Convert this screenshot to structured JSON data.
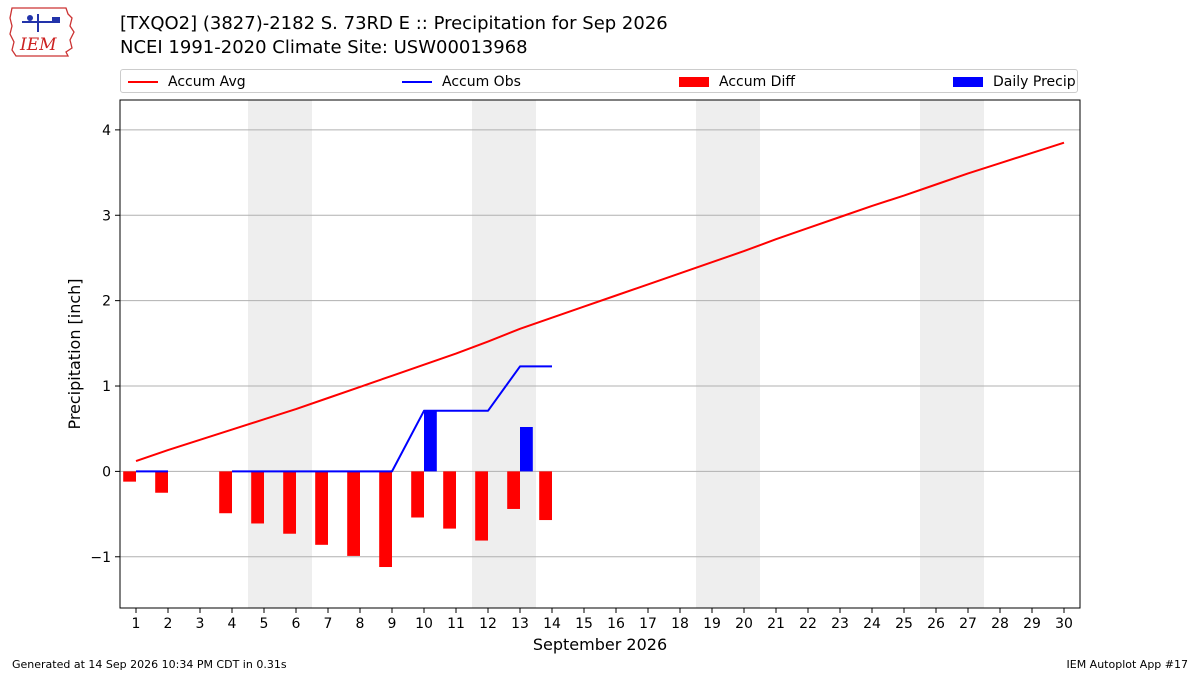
{
  "header": {
    "title": "[TXQO2] (3827)-2182 S. 73RD E :: Precipitation for Sep 2026",
    "subtitle": "NCEI 1991-2020 Climate Site: USW00013968",
    "logo_text": "IEM"
  },
  "legend": {
    "items": [
      {
        "label": "Accum Avg",
        "kind": "line",
        "color": "#ff0000"
      },
      {
        "label": "Accum Obs",
        "kind": "line",
        "color": "#0000ff"
      },
      {
        "label": "Accum Diff",
        "kind": "patch",
        "color": "#ff0000"
      },
      {
        "label": "Daily Precip",
        "kind": "patch",
        "color": "#0000ff"
      }
    ]
  },
  "chart_data": {
    "type": "bar",
    "xlabel": "September 2026",
    "ylabel": "Precipitation [inch]",
    "xlim": [
      0.5,
      30.5
    ],
    "ylim": [
      -1.6,
      4.35
    ],
    "yticks": [
      -1,
      0,
      1,
      2,
      3,
      4
    ],
    "ytick_labels": [
      "−1",
      "0",
      "1",
      "2",
      "3",
      "4"
    ],
    "xticks": [
      1,
      2,
      3,
      4,
      5,
      6,
      7,
      8,
      9,
      10,
      11,
      12,
      13,
      14,
      15,
      16,
      17,
      18,
      19,
      20,
      21,
      22,
      23,
      24,
      25,
      26,
      27,
      28,
      29,
      30
    ],
    "xtick_labels": [
      "1",
      "2",
      "3",
      "4",
      "5",
      "6",
      "7",
      "8",
      "9",
      "10",
      "11",
      "12",
      "13",
      "14",
      "15",
      "16",
      "17",
      "18",
      "19",
      "20",
      "21",
      "22",
      "23",
      "24",
      "25",
      "26",
      "27",
      "28",
      "29",
      "30"
    ],
    "weekend_bands": [
      [
        4.5,
        6.5
      ],
      [
        11.5,
        13.5
      ],
      [
        18.5,
        20.5
      ],
      [
        25.5,
        27.5
      ]
    ],
    "grid": "y",
    "series": [
      {
        "name": "Accum Avg",
        "kind": "line",
        "color": "#ff0000",
        "x": [
          1,
          2,
          3,
          4,
          5,
          6,
          7,
          8,
          9,
          10,
          11,
          12,
          13,
          14,
          15,
          16,
          17,
          18,
          19,
          20,
          21,
          22,
          23,
          24,
          25,
          26,
          27,
          28,
          29,
          30
        ],
        "values": [
          0.12,
          0.25,
          0.37,
          0.49,
          0.61,
          0.73,
          0.86,
          0.99,
          1.12,
          1.25,
          1.38,
          1.52,
          1.67,
          1.8,
          1.93,
          2.06,
          2.19,
          2.32,
          2.45,
          2.58,
          2.72,
          2.85,
          2.98,
          3.11,
          3.23,
          3.36,
          3.49,
          3.61,
          3.73,
          3.85
        ]
      },
      {
        "name": "Accum Obs",
        "kind": "line",
        "color": "#0000ff",
        "x": [
          1,
          2,
          3,
          4,
          5,
          6,
          7,
          8,
          9,
          10,
          11,
          12,
          13,
          14
        ],
        "values": [
          0,
          0,
          null,
          0,
          0,
          0,
          0,
          0,
          0,
          0.71,
          0.71,
          0.71,
          1.23,
          1.23
        ]
      },
      {
        "name": "Accum Diff",
        "kind": "bar",
        "color": "#ff0000",
        "offset": -0.2,
        "x": [
          1,
          2,
          3,
          4,
          5,
          6,
          7,
          8,
          9,
          10,
          11,
          12,
          13,
          14
        ],
        "values": [
          -0.12,
          -0.25,
          null,
          -0.49,
          -0.61,
          -0.73,
          -0.86,
          -0.99,
          -1.12,
          -0.54,
          -0.67,
          -0.81,
          -0.44,
          -0.57
        ]
      },
      {
        "name": "Daily Precip",
        "kind": "bar",
        "color": "#0000ff",
        "offset": 0.2,
        "x": [
          10,
          13
        ],
        "values": [
          0.71,
          0.52
        ]
      }
    ]
  },
  "footer": {
    "left": "Generated at 14 Sep 2026 10:34 PM CDT in 0.31s",
    "right": "IEM Autoplot App #17"
  }
}
